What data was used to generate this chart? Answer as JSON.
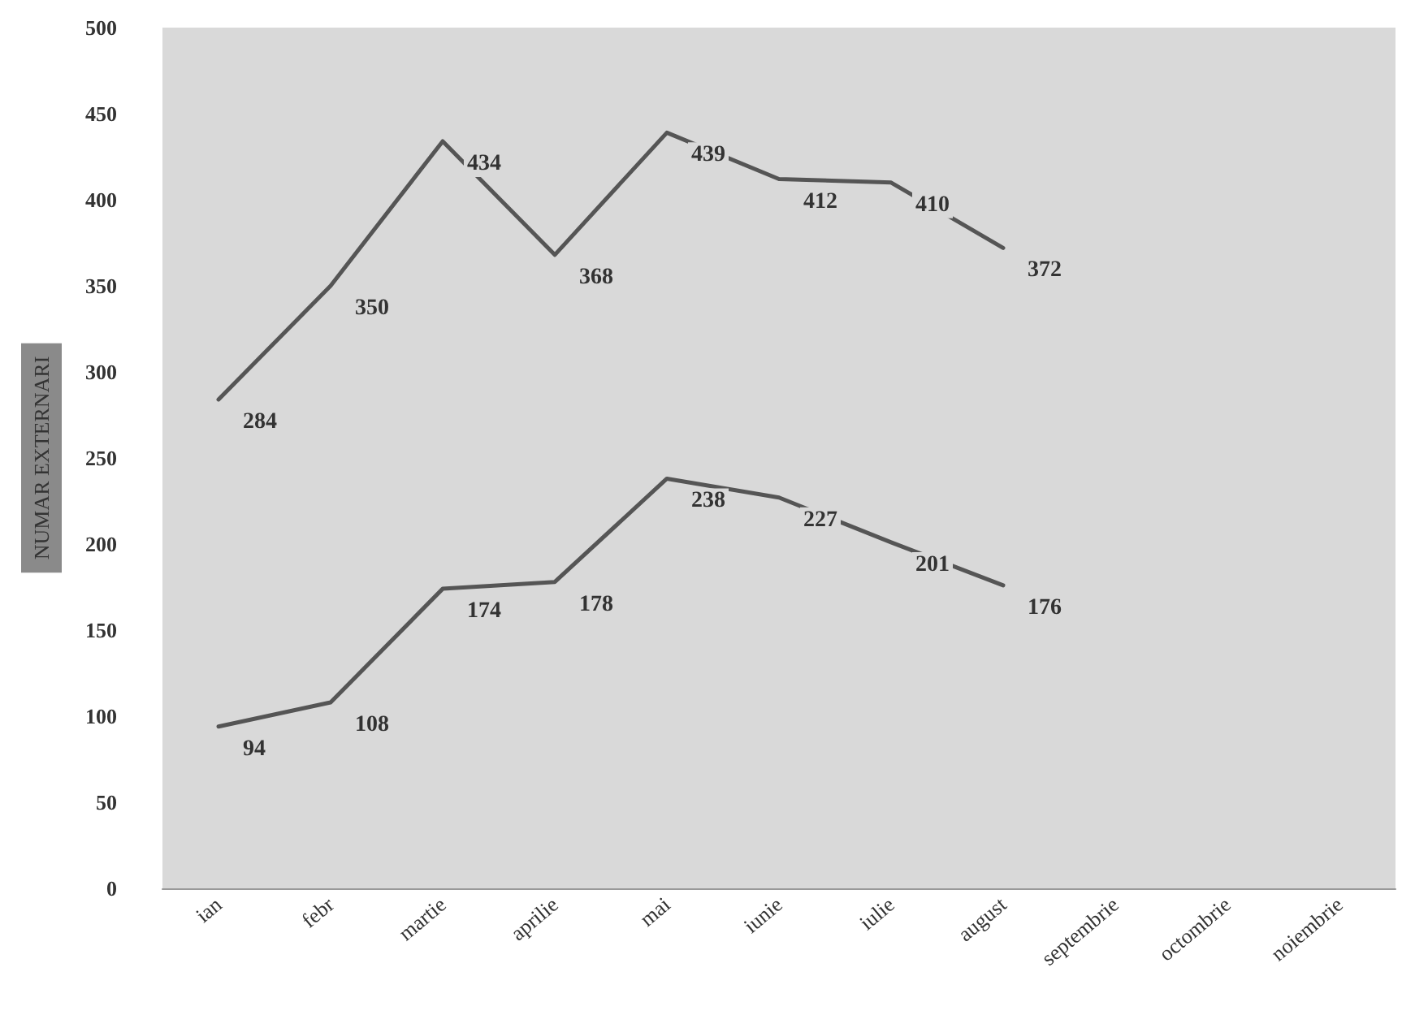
{
  "chart_data": {
    "type": "line",
    "ylabel": "NUMAR EXTERNARI",
    "categories": [
      "ian",
      "febr",
      "martie",
      "aprilie",
      "mai",
      "iunie",
      "iulie",
      "august",
      "septembrie",
      "octombrie",
      "noiembrie"
    ],
    "series": [
      {
        "color": "#555555",
        "values": [
          284,
          350,
          434,
          368,
          439,
          412,
          410,
          372,
          null,
          null,
          null
        ]
      },
      {
        "color": "#555555",
        "values": [
          94,
          108,
          174,
          178,
          238,
          227,
          201,
          176,
          null,
          null,
          null
        ]
      }
    ],
    "ylim": [
      0,
      500
    ],
    "yticks": [
      0,
      50,
      100,
      150,
      200,
      250,
      300,
      350,
      400,
      450,
      500
    ],
    "data_labels": true,
    "grid": false,
    "marker": "none",
    "line_style": "solid"
  }
}
